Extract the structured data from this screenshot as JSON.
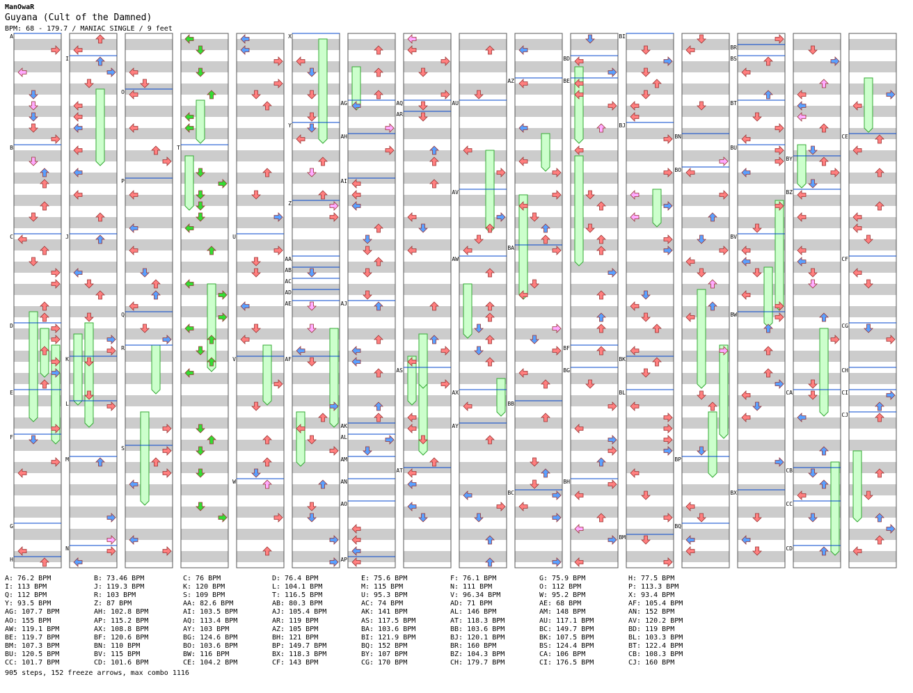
{
  "header": {
    "author": "ManOwaR",
    "title": "Guyana (Cult of the Damned)",
    "info": "BPM: 68 - 179.7 / MANIAC SINGLE / 9 feet"
  },
  "bpm_changes": [
    "A: 76.2 BPM",
    "B: 73.46 BPM",
    "C: 76 BPM",
    "D: 76.4 BPM",
    "E: 75.6 BPM",
    "F: 76.1 BPM",
    "G: 75.9 BPM",
    "H: 77.5 BPM",
    "I: 113 BPM",
    "J: 119.3 BPM",
    "K: 120 BPM",
    "L: 104.1 BPM",
    "M: 115 BPM",
    "N: 111 BPM",
    "O: 112 BPM",
    "P: 113.3 BPM",
    "Q: 112 BPM",
    "R: 103 BPM",
    "S: 109 BPM",
    "T: 116.5 BPM",
    "U: 95.3 BPM",
    "V: 96.34 BPM",
    "W: 95.2 BPM",
    "X: 93.4 BPM",
    "Y: 93.5 BPM",
    "Z: 87 BPM",
    "AA: 82.6 BPM",
    "AB: 80.3 BPM",
    "AC: 74 BPM",
    "AD: 71 BPM",
    "AE: 68 BPM",
    "AF: 105.4 BPM",
    "AG: 107.7 BPM",
    "AH: 102.8 BPM",
    "AI: 103.5 BPM",
    "AJ: 105.4 BPM",
    "AK: 141 BPM",
    "AL: 146 BPM",
    "AM: 148 BPM",
    "AN: 152 BPM",
    "AO: 155 BPM",
    "AP: 115.2 BPM",
    "AQ: 113.4 BPM",
    "AR: 119 BPM",
    "AS: 117.5 BPM",
    "AT: 118.3 BPM",
    "AU: 117.1 BPM",
    "AV: 120.2 BPM",
    "AW: 119.1 BPM",
    "AX: 108.8 BPM",
    "AY: 103 BPM",
    "AZ: 105 BPM",
    "BA: 103.6 BPM",
    "BB: 103.6 BPM",
    "BC: 149.7 BPM",
    "BD: 119 BPM",
    "BE: 119.7 BPM",
    "BF: 120.6 BPM",
    "BG: 124.6 BPM",
    "BH: 121 BPM",
    "BI: 121.9 BPM",
    "BJ: 120.1 BPM",
    "BK: 107.5 BPM",
    "BL: 103.3 BPM",
    "BM: 107.3 BPM",
    "BN: 110 BPM",
    "BO: 103.6 BPM",
    "BP: 149.7 BPM",
    "BQ: 152 BPM",
    "BR: 160 BPM",
    "BS: 124.4 BPM",
    "BT: 122.4 BPM",
    "BU: 120.5 BPM",
    "BV: 115 BPM",
    "BW: 116 BPM",
    "BX: 118.3 BPM",
    "BY: 107 BPM",
    "BZ: 104.3 BPM",
    "CA: 106 BPM",
    "CB: 108.3 BPM",
    "CC: 101.7 BPM",
    "CD: 101.6 BPM",
    "CE: 104.2 BPM",
    "CF: 143 BPM",
    "CG: 170 BPM",
    "CH: 179.7 BPM",
    "CI: 176.5 BPM",
    "CJ: 160 BPM"
  ],
  "stats": "905 steps, 152 freeze arrows, max combo 1116",
  "columns": [
    {
      "markers": [
        [
          "A",
          0
        ],
        [
          "B",
          20
        ],
        [
          "C",
          36
        ],
        [
          "D",
          52
        ],
        [
          "E",
          64
        ],
        [
          "F",
          72
        ],
        [
          "G",
          88
        ],
        [
          "H",
          94
        ]
      ]
    },
    {
      "markers": [
        [
          "I",
          4
        ],
        [
          "J",
          36
        ],
        [
          "K",
          58
        ],
        [
          "L",
          66
        ],
        [
          "M",
          76
        ],
        [
          "N",
          92
        ]
      ]
    },
    {
      "markers": [
        [
          "O",
          10
        ],
        [
          "P",
          26
        ],
        [
          "Q",
          50
        ],
        [
          "R",
          56
        ],
        [
          "S",
          74
        ]
      ]
    },
    {
      "markers": [
        [
          "T",
          20
        ]
      ]
    },
    {
      "markers": [
        [
          "U",
          36
        ],
        [
          "V",
          58
        ],
        [
          "W",
          80
        ]
      ]
    },
    {
      "markers": [
        [
          "X",
          0
        ],
        [
          "Y",
          16
        ],
        [
          "Z",
          30
        ],
        [
          "AA",
          40
        ],
        [
          "AB",
          42
        ],
        [
          "AC",
          44
        ],
        [
          "AD",
          46
        ],
        [
          "AE",
          48
        ],
        [
          "AF",
          58
        ]
      ]
    },
    {
      "markers": [
        [
          "AG",
          12
        ],
        [
          "AH",
          18
        ],
        [
          "AI",
          26
        ],
        [
          "AJ",
          48
        ],
        [
          "AK",
          70
        ],
        [
          "AL",
          72
        ],
        [
          "AM",
          76
        ],
        [
          "AN",
          80
        ],
        [
          "AO",
          84
        ],
        [
          "AP",
          94
        ]
      ]
    },
    {
      "markers": [
        [
          "AQ",
          12
        ],
        [
          "AR",
          14
        ],
        [
          "AS",
          60
        ],
        [
          "AT",
          78
        ]
      ]
    },
    {
      "markers": [
        [
          "AU",
          12
        ],
        [
          "AV",
          28
        ],
        [
          "AW",
          40
        ],
        [
          "AX",
          64
        ],
        [
          "AY",
          70
        ]
      ]
    },
    {
      "markers": [
        [
          "AZ",
          8
        ],
        [
          "BA",
          38
        ],
        [
          "BB",
          66
        ],
        [
          "BC",
          82
        ]
      ]
    },
    {
      "markers": [
        [
          "BD",
          4
        ],
        [
          "BE",
          8
        ],
        [
          "BF",
          56
        ],
        [
          "BG",
          60
        ],
        [
          "BH",
          80
        ]
      ]
    },
    {
      "markers": [
        [
          "BI",
          0
        ],
        [
          "BJ",
          16
        ],
        [
          "BK",
          58
        ],
        [
          "BL",
          64
        ],
        [
          "BM",
          90
        ]
      ]
    },
    {
      "markers": [
        [
          "BN",
          18
        ],
        [
          "BO",
          24
        ],
        [
          "BP",
          76
        ],
        [
          "BQ",
          88
        ]
      ]
    },
    {
      "markers": [
        [
          "BR",
          2
        ],
        [
          "BS",
          4
        ],
        [
          "BT",
          12
        ],
        [
          "BU",
          20
        ],
        [
          "BV",
          36
        ],
        [
          "BW",
          50
        ],
        [
          "BX",
          82
        ]
      ]
    },
    {
      "markers": [
        [
          "BY",
          22
        ],
        [
          "BZ",
          28
        ],
        [
          "CA",
          64
        ],
        [
          "CB",
          78
        ],
        [
          "CC",
          84
        ],
        [
          "CD",
          92
        ]
      ]
    },
    {
      "markers": [
        [
          "CE",
          18
        ],
        [
          "CF",
          40
        ],
        [
          "CG",
          52
        ],
        [
          "CH",
          60
        ],
        [
          "CI",
          64
        ],
        [
          "CJ",
          68
        ]
      ]
    }
  ],
  "colors": {
    "red_note": "#ff7f7f",
    "blue_note": "#5aa0ff",
    "green_note": "#33dd33",
    "pink_note": "#ffaaff",
    "freeze_fill": "#ccffcc",
    "freeze_stroke": "#33aa33",
    "band_gray": "#cccccc",
    "bpm_line": "#0044cc"
  }
}
